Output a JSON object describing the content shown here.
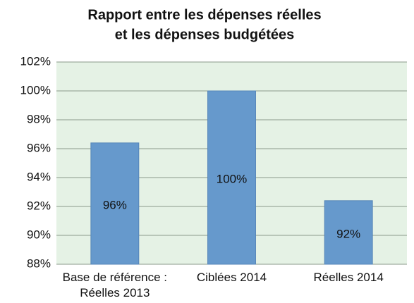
{
  "chart_data": {
    "type": "bar",
    "title": [
      "Rapport entre les dépenses réelles",
      "et les dépenses budgétées"
    ],
    "categories": [
      [
        "Base de référence :",
        "Réelles 2013"
      ],
      [
        "Ciblées 2014"
      ],
      [
        "Réelles 2014"
      ]
    ],
    "values": [
      96.4,
      100,
      92.4
    ],
    "value_labels": [
      "96%",
      "100%",
      "92%"
    ],
    "color": "#6699cc",
    "ylim": [
      88,
      102
    ],
    "yticks": [
      {
        "value": 88,
        "label": "88%"
      },
      {
        "value": 90,
        "label": "90%"
      },
      {
        "value": 92,
        "label": "92%"
      },
      {
        "value": 94,
        "label": "94%"
      },
      {
        "value": 96,
        "label": "96%"
      },
      {
        "value": 98,
        "label": "98%"
      },
      {
        "value": 100,
        "label": "100%"
      },
      {
        "value": 102,
        "label": "102%"
      }
    ],
    "grid": true
  }
}
